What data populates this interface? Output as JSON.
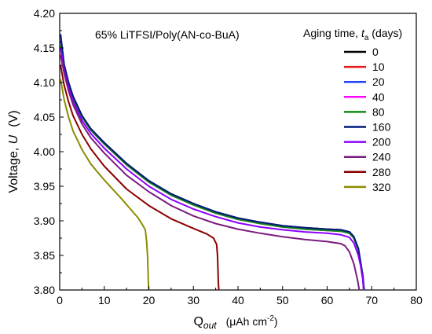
{
  "chart_data": {
    "type": "line",
    "title": "",
    "annotation": "65% LiTFSI/Poly(AN-co-BuA)",
    "xlabel": {
      "main": "Q",
      "sub": "out",
      "unit": "(μAh cm",
      "unit_sup": "-2",
      "unit_end": ")"
    },
    "ylabel": {
      "main": "Voltage, ",
      "sym": "U",
      "unit": "(V)"
    },
    "xlim": [
      0,
      80
    ],
    "ylim": [
      3.8,
      4.2
    ],
    "xticks": [
      0,
      10,
      20,
      30,
      40,
      50,
      60,
      70,
      80
    ],
    "yticks": [
      "3.80",
      "3.85",
      "3.90",
      "3.95",
      "4.00",
      "4.05",
      "4.10",
      "4.15",
      "4.20"
    ],
    "legend": {
      "title": "Aging time, ",
      "title_sym": "t",
      "title_sub": "a",
      "title_unit": " (days)",
      "placement": "top-right"
    },
    "series": [
      {
        "name": "0",
        "color": "#000000",
        "points": [
          [
            0.2,
            4.16
          ],
          [
            1,
            4.125
          ],
          [
            2,
            4.1
          ],
          [
            3,
            4.08
          ],
          [
            5,
            4.052
          ],
          [
            7,
            4.033
          ],
          [
            10,
            4.013
          ],
          [
            15,
            3.983
          ],
          [
            20,
            3.958
          ],
          [
            25,
            3.939
          ],
          [
            30,
            3.925
          ],
          [
            35,
            3.913
          ],
          [
            40,
            3.904
          ],
          [
            45,
            3.898
          ],
          [
            50,
            3.893
          ],
          [
            55,
            3.89
          ],
          [
            60,
            3.888
          ],
          [
            63,
            3.887
          ],
          [
            65,
            3.884
          ],
          [
            66,
            3.877
          ],
          [
            67,
            3.86
          ],
          [
            67.5,
            3.84
          ],
          [
            68,
            3.82
          ],
          [
            68.2,
            3.8
          ]
        ]
      },
      {
        "name": "10",
        "color": "#e41a1c",
        "points": [
          [
            0.2,
            4.158
          ],
          [
            1,
            4.124
          ],
          [
            2,
            4.099
          ],
          [
            3,
            4.079
          ],
          [
            5,
            4.051
          ],
          [
            7,
            4.032
          ],
          [
            10,
            4.012
          ],
          [
            15,
            3.982
          ],
          [
            20,
            3.957
          ],
          [
            25,
            3.938
          ],
          [
            30,
            3.924
          ],
          [
            35,
            3.912
          ],
          [
            40,
            3.903
          ],
          [
            45,
            3.897
          ],
          [
            50,
            3.892
          ],
          [
            55,
            3.889
          ],
          [
            60,
            3.887
          ],
          [
            63,
            3.886
          ],
          [
            65,
            3.883
          ],
          [
            66,
            3.876
          ],
          [
            67,
            3.859
          ],
          [
            67.5,
            3.84
          ],
          [
            68,
            3.82
          ],
          [
            68.2,
            3.8
          ]
        ]
      },
      {
        "name": "20",
        "color": "#1f3fff",
        "points": [
          [
            0.2,
            4.158
          ],
          [
            1,
            4.124
          ],
          [
            2,
            4.099
          ],
          [
            3,
            4.079
          ],
          [
            5,
            4.051
          ],
          [
            7,
            4.032
          ],
          [
            10,
            4.012
          ],
          [
            15,
            3.982
          ],
          [
            20,
            3.957
          ],
          [
            25,
            3.938
          ],
          [
            30,
            3.924
          ],
          [
            35,
            3.912
          ],
          [
            40,
            3.903
          ],
          [
            45,
            3.897
          ],
          [
            50,
            3.892
          ],
          [
            55,
            3.889
          ],
          [
            60,
            3.887
          ],
          [
            63,
            3.886
          ],
          [
            65,
            3.883
          ],
          [
            66,
            3.876
          ],
          [
            67,
            3.859
          ],
          [
            67.5,
            3.84
          ],
          [
            68,
            3.82
          ],
          [
            68.3,
            3.8
          ]
        ]
      },
      {
        "name": "40",
        "color": "#ff00ff",
        "points": [
          [
            0.2,
            4.156
          ],
          [
            1,
            4.123
          ],
          [
            2,
            4.098
          ],
          [
            3,
            4.078
          ],
          [
            5,
            4.05
          ],
          [
            7,
            4.031
          ],
          [
            10,
            4.011
          ],
          [
            15,
            3.981
          ],
          [
            20,
            3.956
          ],
          [
            25,
            3.937
          ],
          [
            30,
            3.923
          ],
          [
            35,
            3.911
          ],
          [
            40,
            3.902
          ],
          [
            45,
            3.896
          ],
          [
            50,
            3.891
          ],
          [
            55,
            3.888
          ],
          [
            60,
            3.886
          ],
          [
            63,
            3.885
          ],
          [
            65,
            3.882
          ],
          [
            66,
            3.875
          ],
          [
            67,
            3.858
          ],
          [
            67.5,
            3.84
          ],
          [
            68,
            3.82
          ],
          [
            68.2,
            3.8
          ]
        ]
      },
      {
        "name": "80",
        "color": "#138a13",
        "points": [
          [
            0.2,
            4.155
          ],
          [
            1,
            4.122
          ],
          [
            2,
            4.098
          ],
          [
            3,
            4.078
          ],
          [
            5,
            4.05
          ],
          [
            7,
            4.031
          ],
          [
            10,
            4.011
          ],
          [
            15,
            3.981
          ],
          [
            20,
            3.956
          ],
          [
            25,
            3.937
          ],
          [
            30,
            3.923
          ],
          [
            35,
            3.911
          ],
          [
            40,
            3.902
          ],
          [
            45,
            3.896
          ],
          [
            50,
            3.891
          ],
          [
            55,
            3.888
          ],
          [
            60,
            3.886
          ],
          [
            63,
            3.885
          ],
          [
            65,
            3.882
          ],
          [
            66,
            3.875
          ],
          [
            67,
            3.858
          ],
          [
            67.5,
            3.84
          ],
          [
            68,
            3.82
          ],
          [
            68.2,
            3.8
          ]
        ]
      },
      {
        "name": "160",
        "color": "#001a7a",
        "points": [
          [
            0.2,
            4.17
          ],
          [
            1,
            4.126
          ],
          [
            2,
            4.1
          ],
          [
            3,
            4.08
          ],
          [
            5,
            4.052
          ],
          [
            7,
            4.033
          ],
          [
            10,
            4.013
          ],
          [
            15,
            3.983
          ],
          [
            20,
            3.958
          ],
          [
            25,
            3.939
          ],
          [
            30,
            3.925
          ],
          [
            35,
            3.913
          ],
          [
            40,
            3.904
          ],
          [
            45,
            3.898
          ],
          [
            50,
            3.893
          ],
          [
            55,
            3.89
          ],
          [
            60,
            3.888
          ],
          [
            63,
            3.887
          ],
          [
            65,
            3.884
          ],
          [
            66,
            3.877
          ],
          [
            67,
            3.86
          ],
          [
            67.5,
            3.84
          ],
          [
            68,
            3.82
          ],
          [
            68.3,
            3.8
          ]
        ]
      },
      {
        "name": "200",
        "color": "#8b00ff",
        "points": [
          [
            0.2,
            4.15
          ],
          [
            1,
            4.118
          ],
          [
            2,
            4.093
          ],
          [
            3,
            4.073
          ],
          [
            5,
            4.045
          ],
          [
            7,
            4.026
          ],
          [
            10,
            4.005
          ],
          [
            15,
            3.975
          ],
          [
            20,
            3.95
          ],
          [
            25,
            3.931
          ],
          [
            30,
            3.917
          ],
          [
            35,
            3.906
          ],
          [
            40,
            3.897
          ],
          [
            45,
            3.891
          ],
          [
            50,
            3.887
          ],
          [
            55,
            3.884
          ],
          [
            60,
            3.882
          ],
          [
            63,
            3.88
          ],
          [
            65,
            3.876
          ],
          [
            66,
            3.868
          ],
          [
            67,
            3.85
          ],
          [
            67.5,
            3.835
          ],
          [
            68,
            3.815
          ],
          [
            68.2,
            3.8
          ]
        ]
      },
      {
        "name": "240",
        "color": "#7b1a7e",
        "points": [
          [
            0.2,
            4.14
          ],
          [
            1,
            4.113
          ],
          [
            2,
            4.088
          ],
          [
            3,
            4.068
          ],
          [
            5,
            4.04
          ],
          [
            7,
            4.02
          ],
          [
            10,
            3.998
          ],
          [
            15,
            3.966
          ],
          [
            20,
            3.942
          ],
          [
            25,
            3.922
          ],
          [
            30,
            3.907
          ],
          [
            35,
            3.896
          ],
          [
            40,
            3.888
          ],
          [
            45,
            3.882
          ],
          [
            50,
            3.877
          ],
          [
            55,
            3.873
          ],
          [
            60,
            3.87
          ],
          [
            63,
            3.867
          ],
          [
            64,
            3.864
          ],
          [
            65,
            3.855
          ],
          [
            66,
            3.838
          ],
          [
            66.8,
            3.815
          ],
          [
            67.2,
            3.8
          ]
        ]
      },
      {
        "name": "280",
        "color": "#8b0000",
        "points": [
          [
            0.2,
            4.125
          ],
          [
            1,
            4.096
          ],
          [
            2,
            4.072
          ],
          [
            3,
            4.052
          ],
          [
            5,
            4.025
          ],
          [
            7,
            4.004
          ],
          [
            10,
            3.979
          ],
          [
            15,
            3.946
          ],
          [
            20,
            3.922
          ],
          [
            25,
            3.903
          ],
          [
            30,
            3.889
          ],
          [
            33,
            3.881
          ],
          [
            34.5,
            3.875
          ],
          [
            35.2,
            3.866
          ],
          [
            35.4,
            3.85
          ],
          [
            35.5,
            3.83
          ],
          [
            35.6,
            3.81
          ],
          [
            35.7,
            3.8
          ]
        ]
      },
      {
        "name": "320",
        "color": "#8c8c00",
        "points": [
          [
            0.2,
            4.105
          ],
          [
            1,
            4.075
          ],
          [
            2,
            4.05
          ],
          [
            3,
            4.03
          ],
          [
            5,
            4.003
          ],
          [
            7,
            3.982
          ],
          [
            10,
            3.959
          ],
          [
            12,
            3.945
          ],
          [
            14,
            3.931
          ],
          [
            16,
            3.916
          ],
          [
            17.5,
            3.905
          ],
          [
            18.5,
            3.895
          ],
          [
            19.2,
            3.887
          ],
          [
            19.5,
            3.87
          ],
          [
            19.7,
            3.85
          ],
          [
            19.8,
            3.83
          ],
          [
            19.9,
            3.81
          ],
          [
            20,
            3.8
          ]
        ]
      }
    ]
  }
}
